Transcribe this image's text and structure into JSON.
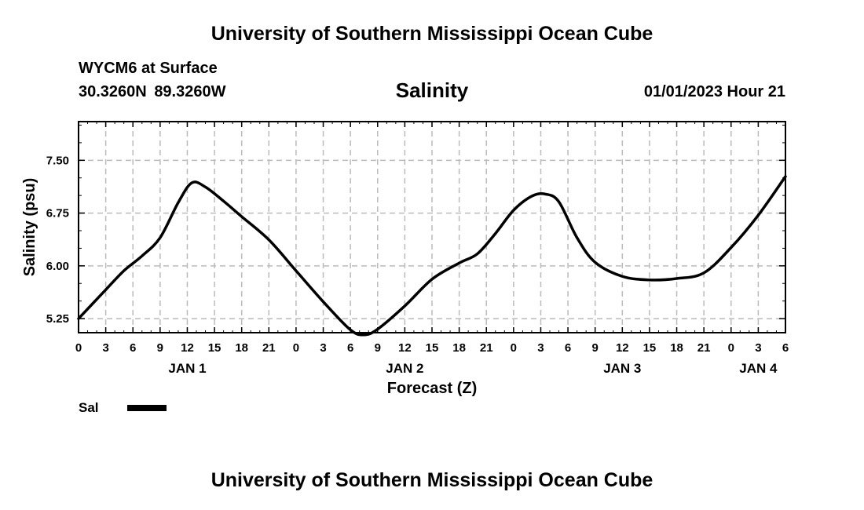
{
  "header": {
    "top_title": "University of Southern Mississippi Ocean Cube",
    "station": "WYCM6 at Surface",
    "latitude": "30.3260N",
    "longitude": "89.3260W",
    "chart_title": "Salinity",
    "datetime": "01/01/2023 Hour 21",
    "bottom_title": "University of Southern Mississippi Ocean Cube"
  },
  "legend": {
    "label": "Sal",
    "color": "#000000"
  },
  "chart_data": {
    "type": "line",
    "title": "Salinity",
    "xlabel": "Forecast (Z)",
    "ylabel": "Salinity (psu)",
    "ylim": [
      5.05,
      8.05
    ],
    "yticks": [
      5.25,
      6.0,
      6.75,
      7.5
    ],
    "ytick_labels": [
      "5.25",
      "6.00",
      "6.75",
      "7.50"
    ],
    "xlim": [
      0,
      78
    ],
    "xticks": [
      0,
      3,
      6,
      9,
      12,
      15,
      18,
      21,
      24,
      27,
      30,
      33,
      36,
      39,
      42,
      45,
      48,
      51,
      54,
      57,
      60,
      63,
      66,
      69,
      72,
      75,
      78
    ],
    "xtick_labels": [
      "0",
      "3",
      "6",
      "9",
      "12",
      "15",
      "18",
      "21",
      "0",
      "3",
      "6",
      "9",
      "12",
      "15",
      "18",
      "21",
      "0",
      "3",
      "6",
      "9",
      "12",
      "15",
      "18",
      "21",
      "0",
      "3",
      "6"
    ],
    "day_labels": [
      {
        "label": "JAN 1",
        "hour": 12
      },
      {
        "label": "JAN 2",
        "hour": 36
      },
      {
        "label": "JAN 3",
        "hour": 60
      },
      {
        "label": "JAN 4",
        "hour": 75
      }
    ],
    "grid": true,
    "series": [
      {
        "name": "Sal",
        "x": [
          0,
          3,
          5,
          7,
          9,
          11,
          12.5,
          14,
          16,
          18,
          21,
          24,
          27,
          30,
          31.5,
          33,
          36,
          39,
          42,
          44,
          46,
          48,
          50,
          51.5,
          53,
          55,
          57,
          60,
          63,
          66,
          69,
          72,
          75,
          78
        ],
        "y": [
          5.25,
          5.66,
          5.93,
          6.14,
          6.4,
          6.9,
          7.18,
          7.12,
          6.92,
          6.7,
          6.37,
          5.93,
          5.49,
          5.09,
          5.02,
          5.1,
          5.43,
          5.81,
          6.04,
          6.17,
          6.46,
          6.79,
          6.99,
          7.02,
          6.91,
          6.4,
          6.05,
          5.85,
          5.8,
          5.82,
          5.9,
          6.26,
          6.72,
          7.27
        ]
      }
    ]
  }
}
